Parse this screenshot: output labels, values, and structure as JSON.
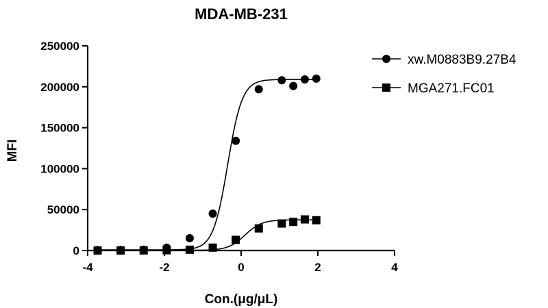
{
  "chart_data": {
    "type": "scatter",
    "title": "MDA-MB-231",
    "xlabel": "Con.(μg/μL)",
    "ylabel": "MFI",
    "xlim": [
      -4,
      4
    ],
    "ylim": [
      0,
      250000
    ],
    "x_ticks": [
      -4,
      -2,
      0,
      2,
      4
    ],
    "y_ticks": [
      0,
      50000,
      100000,
      150000,
      200000,
      250000
    ],
    "x_tick_labels": [
      "-4",
      "-2",
      "0",
      "2",
      "4"
    ],
    "y_tick_labels": [
      "0",
      "50000",
      "100000",
      "150000",
      "200000",
      "250000"
    ],
    "grid": false,
    "legend_position": "top-right",
    "fitted_curves": true,
    "series": [
      {
        "name": "xw.M0883B9.27B4",
        "marker": "circle",
        "color": "#000000",
        "x": [
          -3.74,
          -3.14,
          -2.54,
          -1.94,
          -1.34,
          -0.74,
          -0.14,
          0.46,
          1.06,
          1.36,
          1.66,
          1.96
        ],
        "y": [
          500,
          600,
          1000,
          3500,
          15000,
          45000,
          134000,
          197000,
          208000,
          201000,
          209000,
          210000
        ],
        "fit": {
          "bottom": 800,
          "top": 209000,
          "ec50_log": -0.35,
          "hill": 2.3
        }
      },
      {
        "name": "MGA271.FC01",
        "marker": "square",
        "color": "#000000",
        "x": [
          -3.74,
          -3.14,
          -2.54,
          -1.94,
          -1.34,
          -0.74,
          -0.14,
          0.46,
          1.06,
          1.36,
          1.66,
          1.96
        ],
        "y": [
          0,
          0,
          100,
          300,
          1000,
          3500,
          13000,
          27000,
          33000,
          35000,
          38000,
          37000
        ],
        "fit": {
          "bottom": 200,
          "top": 37500,
          "ec50_log": 0.1,
          "hill": 2.0
        }
      }
    ]
  }
}
